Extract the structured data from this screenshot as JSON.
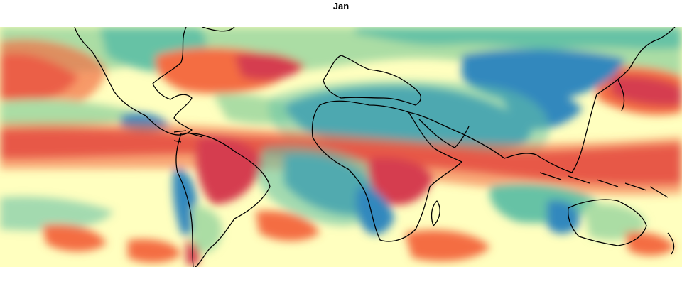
{
  "map": {
    "title": "Jan",
    "palette": {
      "very_wet": "#3288bd",
      "wet": "#66c2a5",
      "moderate_wet": "#abdda4",
      "neutral": "#ffffbf",
      "moderate_dry": "#fdae61",
      "dry": "#f46d43",
      "very_dry": "#d53e4f"
    }
  }
}
